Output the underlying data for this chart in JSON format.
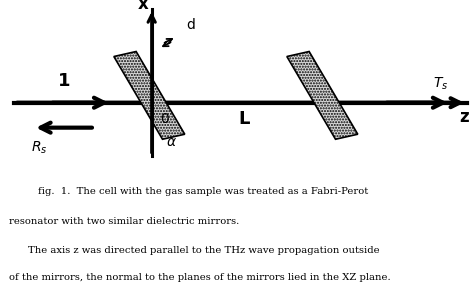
{
  "fig_width": 4.74,
  "fig_height": 2.84,
  "dpi": 100,
  "bg_color": "#ffffff",
  "caption_line1": "fig.  1.  The cell with the gas sample was treated as a Fabri-Perot",
  "caption_line2": "resonator with two similar dielectric mirrors.",
  "caption_line3": "    The axis z was directed parallel to the THz wave propagation outside",
  "caption_line4": "of the mirrors, the normal to the planes of the mirrors lied in the XZ plane."
}
